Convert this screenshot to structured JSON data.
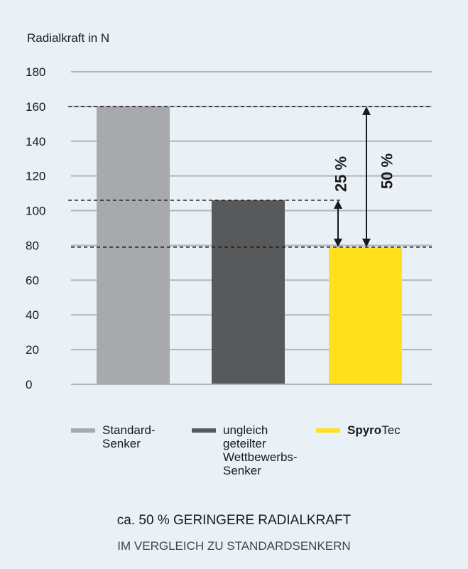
{
  "chart_data": {
    "type": "bar",
    "ylabel": "Radialkraft in N",
    "ylim": [
      0,
      180
    ],
    "yticks": [
      "180",
      "160",
      "140",
      "120",
      "100",
      "80",
      "60",
      "40",
      "20",
      "0"
    ],
    "grid": true,
    "categories": [
      "Standard-Senker",
      "ungleich geteilter Wettbewerbs-Senker",
      "SpyroTec"
    ],
    "values": [
      160,
      106,
      79
    ],
    "colors": [
      "#a7a9ac",
      "#58595b",
      "#ffe01b"
    ],
    "reference_lines": [
      160,
      106,
      79
    ],
    "annotations": [
      {
        "label": "25 %",
        "from": 106,
        "to": 79
      },
      {
        "label": "50 %",
        "from": 160,
        "to": 79
      }
    ]
  },
  "legend": [
    {
      "text": "Standard-\nSenker",
      "color": "#a7a9ac"
    },
    {
      "text": "ungleich\ngeteilter\nWettbewerbs-\nSenker",
      "color": "#58595b"
    },
    {
      "bold": "Spyro",
      "text": "Tec",
      "color": "#ffe01b"
    }
  ],
  "caption": {
    "line1": "ca. 50 % GERINGERE RADIALKRAFT",
    "line2": "IM VERGLEICH ZU STANDARDSENKERN"
  }
}
